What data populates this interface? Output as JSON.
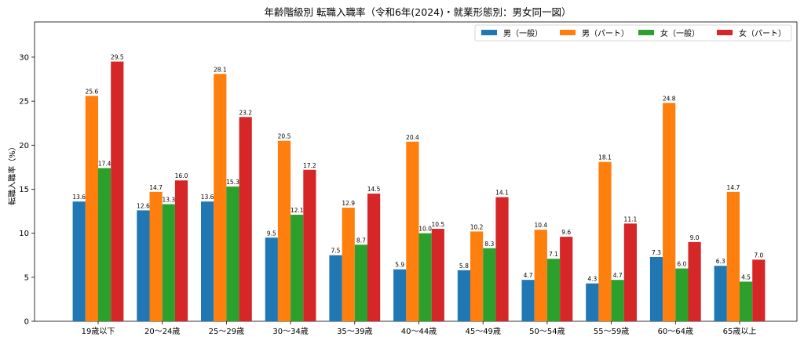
{
  "chart_data": {
    "type": "bar",
    "title": "年齢階級別 転職入職率（令和6年(2024)・就業形態別：男女同一図）",
    "xlabel": "",
    "ylabel": "転職入職率（%）",
    "ylim": [
      0,
      34
    ],
    "yticks": [
      0,
      5,
      10,
      15,
      20,
      25,
      30
    ],
    "grid": false,
    "legend_position": "top-right",
    "categories": [
      "19歳以下",
      "20～24歳",
      "25～29歳",
      "30～34歳",
      "35～39歳",
      "40～44歳",
      "45～49歳",
      "50～54歳",
      "55～59歳",
      "60～64歳",
      "65歳以上"
    ],
    "series": [
      {
        "name": "男（一般）",
        "color": "#1f77b4",
        "values": [
          13.6,
          12.6,
          13.6,
          9.5,
          7.5,
          5.9,
          5.8,
          4.7,
          4.3,
          7.3,
          6.3
        ]
      },
      {
        "name": "男（パート）",
        "color": "#ff7f0e",
        "values": [
          25.6,
          14.7,
          28.1,
          20.5,
          12.9,
          20.4,
          10.2,
          10.4,
          18.1,
          24.8,
          14.7
        ]
      },
      {
        "name": "女（一般）",
        "color": "#2ca02c",
        "values": [
          17.4,
          13.3,
          15.3,
          12.1,
          8.7,
          10.0,
          8.3,
          7.1,
          4.7,
          6.0,
          4.5
        ]
      },
      {
        "name": "女（パート）",
        "color": "#d62728",
        "values": [
          29.5,
          16.0,
          23.2,
          17.2,
          14.5,
          10.5,
          14.1,
          9.6,
          11.1,
          9.0,
          7.0
        ]
      }
    ]
  }
}
